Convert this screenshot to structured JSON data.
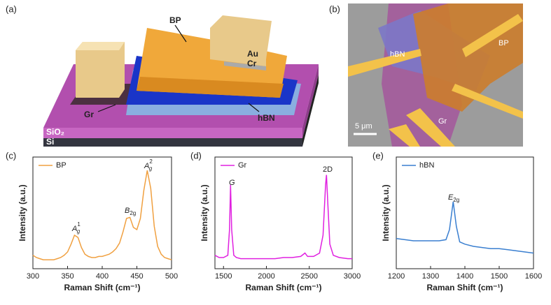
{
  "panels": {
    "labels": [
      "(a)",
      "(b)",
      "(c)",
      "(d)",
      "(e)"
    ]
  },
  "illustration": {
    "labels": [
      "BP",
      "Au",
      "Cr",
      "Gr",
      "hBN",
      "SiO₂",
      "Si"
    ]
  },
  "micrograph": {
    "labels": [
      "hBN",
      "BP",
      "Gr"
    ],
    "scale_bar": "5 μm"
  },
  "chart_data": [
    {
      "type": "line",
      "xlabel": "Raman Shift (cm⁻¹)",
      "ylabel": "Intensity (a.u.)",
      "xlim": [
        300,
        500
      ],
      "xticks": [
        300,
        350,
        400,
        450,
        500
      ],
      "ylim": [
        0,
        1
      ],
      "legend": "upper left",
      "x": [
        300,
        305,
        310,
        315,
        320,
        325,
        330,
        335,
        340,
        345,
        350,
        355,
        360,
        365,
        370,
        375,
        380,
        385,
        390,
        395,
        400,
        405,
        410,
        415,
        420,
        425,
        430,
        435,
        440,
        445,
        450,
        455,
        460,
        465,
        470,
        475,
        480,
        485,
        490,
        495,
        500
      ],
      "series": [
        {
          "name": "BP",
          "color": "#f0a040",
          "values": [
            0.12,
            0.1,
            0.09,
            0.08,
            0.08,
            0.08,
            0.08,
            0.09,
            0.1,
            0.12,
            0.15,
            0.22,
            0.3,
            0.28,
            0.19,
            0.13,
            0.11,
            0.1,
            0.1,
            0.11,
            0.11,
            0.12,
            0.13,
            0.15,
            0.18,
            0.23,
            0.33,
            0.45,
            0.46,
            0.37,
            0.35,
            0.45,
            0.7,
            0.88,
            0.72,
            0.38,
            0.2,
            0.13,
            0.1,
            0.09,
            0.08
          ]
        }
      ],
      "annotations": [
        {
          "base": "A",
          "sub": "g",
          "sup": "1"
        },
        {
          "base": "B",
          "sub": "2g"
        },
        {
          "base": "A",
          "sub": "g",
          "sup": "2"
        }
      ]
    },
    {
      "type": "line",
      "xlabel": "Raman Shift (cm⁻¹)",
      "ylabel": "Intensity (a.u.)",
      "xlim": [
        1400,
        3000
      ],
      "xticks": [
        1500,
        2000,
        2500,
        3000
      ],
      "ylim": [
        0,
        1
      ],
      "legend": "upper left",
      "x": [
        1400,
        1450,
        1500,
        1550,
        1570,
        1582,
        1595,
        1620,
        1650,
        1700,
        1800,
        1900,
        2000,
        2100,
        2200,
        2300,
        2400,
        2450,
        2480,
        2550,
        2620,
        2660,
        2690,
        2700,
        2715,
        2740,
        2780,
        2850,
        2950,
        3000
      ],
      "series": [
        {
          "name": "Gr",
          "color": "#e020e0",
          "values": [
            0.12,
            0.1,
            0.1,
            0.12,
            0.35,
            0.75,
            0.35,
            0.12,
            0.1,
            0.09,
            0.09,
            0.09,
            0.09,
            0.09,
            0.1,
            0.1,
            0.11,
            0.14,
            0.11,
            0.11,
            0.14,
            0.3,
            0.75,
            0.84,
            0.6,
            0.22,
            0.12,
            0.1,
            0.09,
            0.09
          ]
        }
      ],
      "annotations": [
        {
          "base": "G"
        },
        {
          "plain": "2D"
        }
      ]
    },
    {
      "type": "line",
      "xlabel": "Raman Shift (cm⁻¹)",
      "ylabel": "Intensity (a.u.)",
      "xlim": [
        1200,
        1600
      ],
      "xticks": [
        1200,
        1300,
        1400,
        1500,
        1600
      ],
      "ylim": [
        0,
        1
      ],
      "legend": "upper left",
      "x": [
        1200,
        1225,
        1250,
        1275,
        1300,
        1325,
        1345,
        1355,
        1366,
        1375,
        1385,
        1400,
        1425,
        1450,
        1475,
        1500,
        1525,
        1550,
        1575,
        1600
      ],
      "series": [
        {
          "name": "hBN",
          "color": "#3a7fd0",
          "values": [
            0.27,
            0.26,
            0.25,
            0.25,
            0.25,
            0.25,
            0.26,
            0.35,
            0.6,
            0.38,
            0.24,
            0.22,
            0.2,
            0.19,
            0.18,
            0.18,
            0.17,
            0.16,
            0.15,
            0.14
          ]
        }
      ],
      "annotations": [
        {
          "base": "E",
          "sub": "2g"
        }
      ]
    }
  ]
}
